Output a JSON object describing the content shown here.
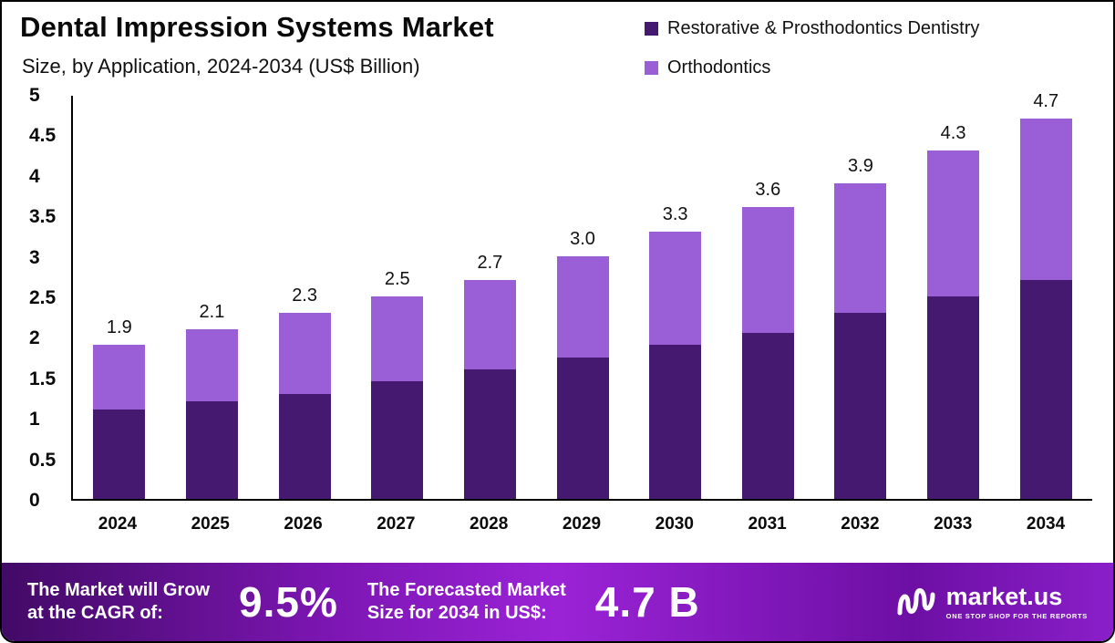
{
  "header": {
    "title": "Dental Impression Systems Market",
    "subtitle": "Size, by Application, 2024-2034 (US$ Billion)"
  },
  "legend": [
    {
      "label": "Restorative & Prosthodontics Dentistry",
      "color": "#45196f"
    },
    {
      "label": "Orthodontics",
      "color": "#9a5fd6"
    }
  ],
  "chart_data": {
    "type": "bar",
    "stacked": true,
    "title": "Dental Impression Systems Market Size, by Application, 2024-2034 (US$ Billion)",
    "categories": [
      "2024",
      "2025",
      "2026",
      "2027",
      "2028",
      "2029",
      "2030",
      "2031",
      "2032",
      "2033",
      "2034"
    ],
    "series": [
      {
        "name": "Restorative & Prosthodontics Dentistry",
        "color": "#45196f",
        "values": [
          1.1,
          1.2,
          1.3,
          1.45,
          1.6,
          1.75,
          1.9,
          2.05,
          2.3,
          2.5,
          2.7
        ]
      },
      {
        "name": "Orthodontics",
        "color": "#9a5fd6",
        "values": [
          0.8,
          0.9,
          1.0,
          1.05,
          1.1,
          1.25,
          1.4,
          1.55,
          1.6,
          1.8,
          2.0
        ]
      }
    ],
    "totals": [
      "1.9",
      "2.1",
      "2.3",
      "2.5",
      "2.7",
      "3.0",
      "3.3",
      "3.6",
      "3.9",
      "4.3",
      "4.7"
    ],
    "ylim": [
      0,
      5
    ],
    "yticks": [
      "5",
      "4.5",
      "4",
      "3.5",
      "3",
      "2.5",
      "2",
      "1.5",
      "1",
      "0.5",
      "0"
    ],
    "legend_position": "top-right",
    "grid": false,
    "xlabel": "",
    "ylabel": ""
  },
  "footer": {
    "cagr_label_line1": "The Market will Grow",
    "cagr_label_line2": "at the CAGR of:",
    "cagr_value": "9.5%",
    "forecast_label_line1": "The Forecasted Market",
    "forecast_label_line2": "Size for 2034 in US$:",
    "forecast_value": "4.7 B",
    "brand_name": "market.us",
    "brand_tagline": "ONE STOP SHOP FOR THE REPORTS"
  }
}
